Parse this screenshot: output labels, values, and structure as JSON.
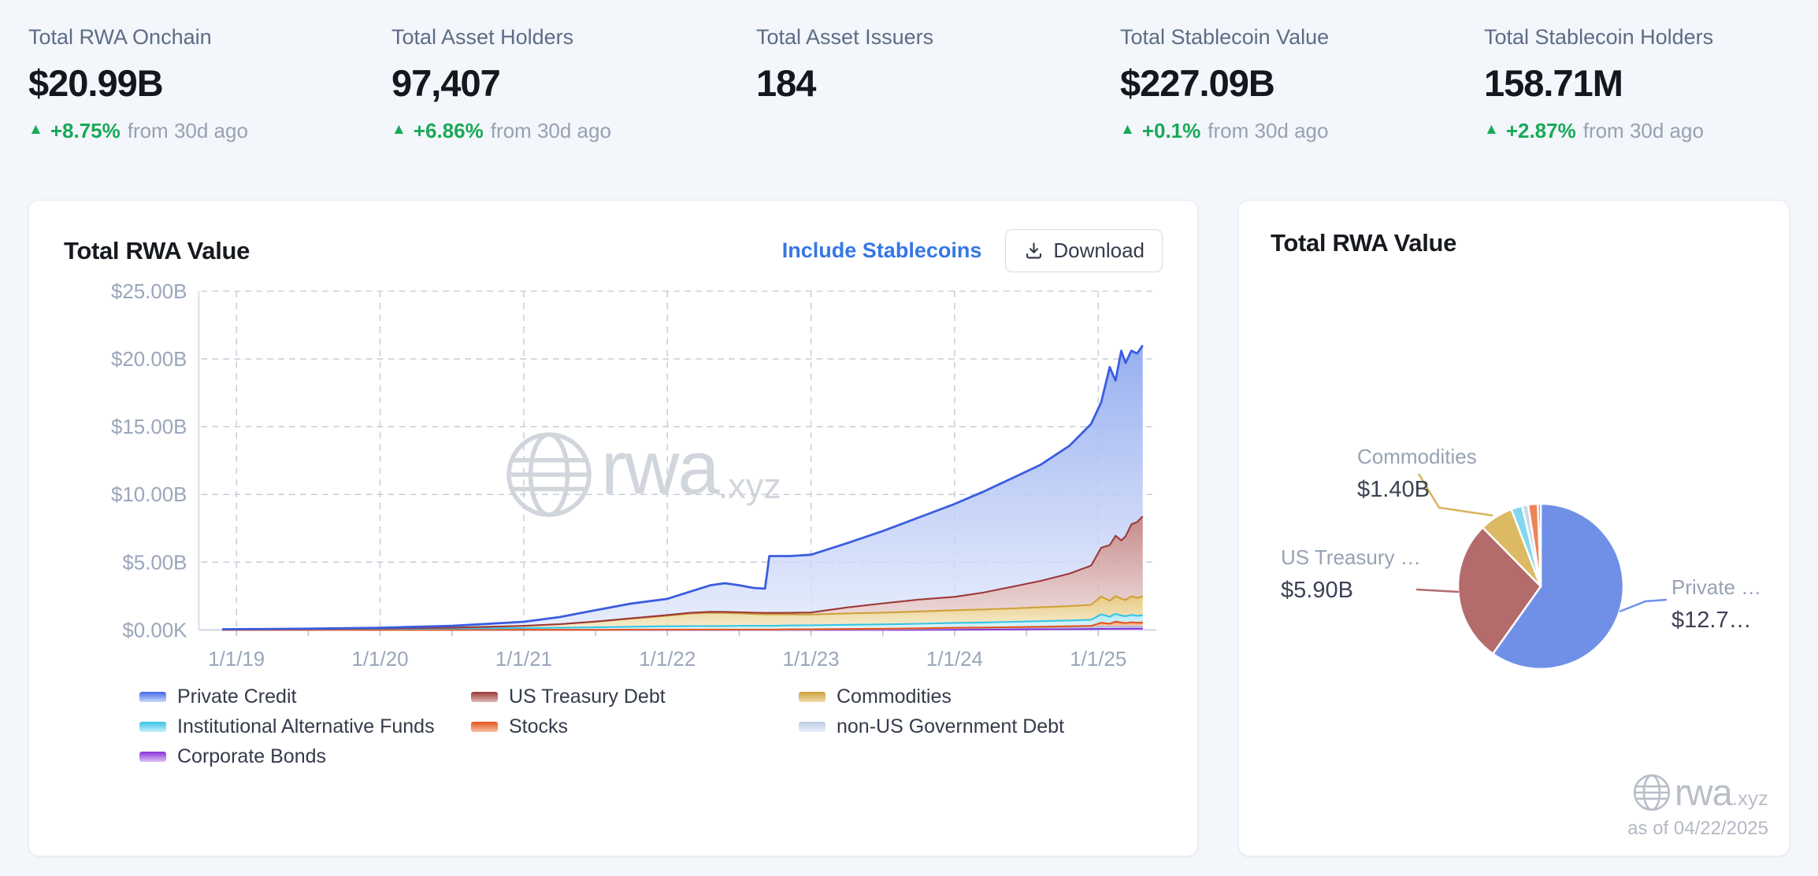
{
  "page": {
    "background": "#f3f6fa",
    "accent_blue": "#3577e5",
    "positive_green": "#18a957"
  },
  "stats": [
    {
      "label": "Total RWA Onchain",
      "value": "$20.99B",
      "delta": "+8.75%",
      "note": "from 30d ago",
      "direction": "up"
    },
    {
      "label": "Total Asset Holders",
      "value": "97,407",
      "delta": "+6.86%",
      "note": "from 30d ago",
      "direction": "up"
    },
    {
      "label": "Total Asset Issuers",
      "value": "184"
    },
    {
      "label": "Total Stablecoin Value",
      "value": "$227.09B",
      "delta": "+0.1%",
      "note": "from 30d ago",
      "direction": "up"
    },
    {
      "label": "Total Stablecoin Holders",
      "value": "158.71M",
      "delta": "+2.87%",
      "note": "from 30d ago",
      "direction": "up"
    }
  ],
  "area_card": {
    "title": "Total RWA Value",
    "stablecoins_link": "Include Stablecoins",
    "download_label": "Download",
    "watermark_brand": "rwa",
    "watermark_tld": ".xyz"
  },
  "pie_card": {
    "title": "Total RWA Value",
    "watermark_brand": "rwa",
    "watermark_tld": ".xyz",
    "as_of": "as of 04/22/2025",
    "callouts": [
      {
        "name": "Commodities",
        "value": "$1.40B"
      },
      {
        "name": "US Treasury …",
        "value": "$5.90B"
      },
      {
        "name": "Private …",
        "value": "$12.7…"
      }
    ]
  },
  "chart_data": [
    {
      "type": "area",
      "stacked": true,
      "title": "Total RWA Value",
      "x_ticks": [
        "1/1/19",
        "1/1/20",
        "1/1/21",
        "1/1/22",
        "1/1/23",
        "1/1/24",
        "1/1/25"
      ],
      "y_ticks": [
        "$0.00K",
        "$5.00B",
        "$10.00B",
        "$15.00B",
        "$20.00B",
        "$25.00B"
      ],
      "ylim": [
        0,
        25
      ],
      "grid": "dashed",
      "legend_position": "bottom",
      "legend_order": [
        6,
        5,
        4,
        3,
        2,
        1,
        0
      ],
      "x": [
        2018.9,
        2019.0,
        2019.5,
        2020.0,
        2020.5,
        2021.0,
        2021.25,
        2021.5,
        2021.75,
        2022.0,
        2022.15,
        2022.3,
        2022.4,
        2022.5,
        2022.6,
        2022.68,
        2022.71,
        2022.85,
        2023.0,
        2023.25,
        2023.5,
        2023.75,
        2024.0,
        2024.2,
        2024.4,
        2024.6,
        2024.8,
        2024.95,
        2025.02,
        2025.08,
        2025.12,
        2025.16,
        2025.19,
        2025.23,
        2025.27,
        2025.31
      ],
      "series": [
        {
          "name": "Corporate Bonds",
          "line": "#8833d6",
          "fill_top": "#c29bea",
          "fill_bottom": "#e6d7f8",
          "legend": [
            "#8833d6",
            "#ddc2f4"
          ],
          "values": [
            0,
            0,
            0,
            0,
            0,
            0,
            0,
            0,
            0,
            0,
            0,
            0,
            0,
            0,
            0,
            0,
            0,
            0,
            0,
            0,
            0,
            0.01,
            0.02,
            0.03,
            0.04,
            0.05,
            0.06,
            0.07,
            0.08,
            0.08,
            0.08,
            0.09,
            0.09,
            0.09,
            0.09,
            0.09
          ]
        },
        {
          "name": "non-US Government Debt",
          "line": "#aebfdc",
          "fill_top": "#ccd8ec",
          "fill_bottom": "#e9eff8",
          "legend": [
            "#bac9e2",
            "#ecf1f9"
          ],
          "values": [
            0,
            0,
            0,
            0,
            0,
            0.01,
            0.01,
            0.01,
            0.02,
            0.02,
            0.02,
            0.02,
            0.02,
            0.02,
            0.02,
            0.02,
            0.02,
            0.03,
            0.03,
            0.05,
            0.06,
            0.08,
            0.1,
            0.11,
            0.12,
            0.13,
            0.14,
            0.15,
            0.15,
            0.16,
            0.16,
            0.16,
            0.16,
            0.16,
            0.16,
            0.16
          ]
        },
        {
          "name": "Stocks",
          "line": "#e5541e",
          "fill_top": "#f2986e",
          "fill_bottom": "#fbd6c2",
          "legend": [
            "#e5541e",
            "#f8c0a6"
          ],
          "values": [
            0,
            0,
            0,
            0,
            0,
            0,
            0,
            0,
            0.01,
            0.01,
            0.01,
            0.01,
            0.01,
            0.01,
            0.01,
            0.01,
            0.01,
            0.02,
            0.02,
            0.02,
            0.03,
            0.03,
            0.04,
            0.04,
            0.05,
            0.06,
            0.07,
            0.08,
            0.3,
            0.22,
            0.38,
            0.3,
            0.26,
            0.32,
            0.28,
            0.3
          ]
        },
        {
          "name": "Institutional Alternative Funds",
          "line": "#38c4e4",
          "fill_top": "#a8e6f4",
          "fill_bottom": "#daf5fb",
          "legend": [
            "#38c4e4",
            "#c9f0fa"
          ],
          "values": [
            0.04,
            0.05,
            0.06,
            0.08,
            0.1,
            0.13,
            0.15,
            0.18,
            0.21,
            0.24,
            0.25,
            0.26,
            0.26,
            0.27,
            0.27,
            0.27,
            0.27,
            0.28,
            0.29,
            0.31,
            0.32,
            0.34,
            0.36,
            0.37,
            0.39,
            0.41,
            0.43,
            0.45,
            0.62,
            0.52,
            0.58,
            0.52,
            0.5,
            0.54,
            0.52,
            0.53
          ]
        },
        {
          "name": "Commodities",
          "line": "#cda137",
          "fill_top": "#e5c477",
          "fill_bottom": "#f4e7c0",
          "legend": [
            "#cda137",
            "#f0ddab"
          ],
          "values": [
            0,
            0,
            0.01,
            0.03,
            0.06,
            0.16,
            0.26,
            0.42,
            0.6,
            0.78,
            0.92,
            0.98,
            0.96,
            0.92,
            0.88,
            0.86,
            0.86,
            0.82,
            0.8,
            0.84,
            0.87,
            0.9,
            0.94,
            0.96,
            0.99,
            1.02,
            1.06,
            1.1,
            1.32,
            1.18,
            1.3,
            1.24,
            1.2,
            1.38,
            1.32,
            1.4
          ]
        },
        {
          "name": "US Treasury Debt",
          "line": "#9c3838",
          "fill_top": "#c07f7f",
          "fill_bottom": "#ecd6d6",
          "legend": [
            "#9c3838",
            "#e0b6b6"
          ],
          "values": [
            0,
            0,
            0,
            0,
            0,
            0,
            0.01,
            0.01,
            0.02,
            0.05,
            0.06,
            0.07,
            0.08,
            0.09,
            0.1,
            0.1,
            0.1,
            0.12,
            0.15,
            0.44,
            0.68,
            0.88,
            0.98,
            1.25,
            1.6,
            1.95,
            2.4,
            2.9,
            3.6,
            4.1,
            4.45,
            4.3,
            4.7,
            5.3,
            5.6,
            5.9
          ]
        },
        {
          "name": "Private Credit",
          "line": "#3a5ce0",
          "fill_top": "#8ea8ef",
          "fill_bottom": "#dfe7fb",
          "legend": [
            "#4468e8",
            "#c9d9f8"
          ],
          "values": [
            0.01,
            0.01,
            0.02,
            0.05,
            0.14,
            0.3,
            0.52,
            0.84,
            1.09,
            1.2,
            1.54,
            1.96,
            2.12,
            1.99,
            1.82,
            1.79,
            4.19,
            4.18,
            4.26,
            4.74,
            5.34,
            6.06,
            6.86,
            7.44,
            8.01,
            8.58,
            9.44,
            10.45,
            10.73,
            13.14,
            11.45,
            13.99,
            12.79,
            12.81,
            12.43,
            12.62
          ]
        }
      ]
    },
    {
      "type": "pie",
      "title": "Total RWA Value",
      "unit": "$B",
      "start_angle_deg": 0,
      "clockwise": true,
      "slices": [
        {
          "name": "Private Credit",
          "value": 12.7,
          "color": "#7090e8"
        },
        {
          "name": "US Treasury Debt",
          "value": 5.9,
          "color": "#b36b6b"
        },
        {
          "name": "Commodities",
          "value": 1.4,
          "color": "#dcba64"
        },
        {
          "name": "Institutional Alternative Funds",
          "value": 0.46,
          "color": "#83d7ee"
        },
        {
          "name": "non-US Government Debt",
          "value": 0.25,
          "color": "#ccd7ea"
        },
        {
          "name": "Stocks",
          "value": 0.4,
          "color": "#ef8355"
        },
        {
          "name": "Corporate Bonds",
          "value": 0.12,
          "color": "#a96ae0"
        }
      ]
    }
  ]
}
